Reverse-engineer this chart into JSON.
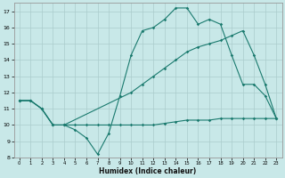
{
  "xlabel": "Humidex (Indice chaleur)",
  "line_color": "#1a7a6e",
  "bg_color": "#c8e8e8",
  "grid_color": "#aacccc",
  "xlim": [
    -0.5,
    23.5
  ],
  "ylim": [
    8,
    17.5
  ],
  "yticks": [
    8,
    9,
    10,
    11,
    12,
    13,
    14,
    15,
    16,
    17
  ],
  "xticks": [
    0,
    1,
    2,
    3,
    4,
    5,
    6,
    7,
    8,
    9,
    10,
    11,
    12,
    13,
    14,
    15,
    16,
    17,
    18,
    19,
    20,
    21,
    22,
    23
  ],
  "line1_x": [
    0,
    1,
    2,
    3,
    4,
    5,
    6,
    7,
    8,
    9,
    10,
    11,
    12,
    13,
    14,
    15,
    16,
    17,
    18,
    19,
    20,
    21,
    22,
    23
  ],
  "line1_y": [
    11.5,
    11.5,
    11.0,
    10.0,
    10.0,
    10.0,
    10.0,
    10.0,
    10.0,
    10.0,
    10.0,
    10.0,
    10.0,
    10.1,
    10.2,
    10.3,
    10.3,
    10.3,
    10.4,
    10.4,
    10.4,
    10.4,
    10.4,
    10.4
  ],
  "line2_x": [
    0,
    1,
    2,
    3,
    4,
    10,
    11,
    12,
    13,
    14,
    15,
    16,
    17,
    18,
    19,
    20,
    21,
    22,
    23
  ],
  "line2_y": [
    11.5,
    11.5,
    11.0,
    10.0,
    10.0,
    12.0,
    12.5,
    13.0,
    13.5,
    14.0,
    14.5,
    14.8,
    15.0,
    15.2,
    15.5,
    15.8,
    14.3,
    12.5,
    10.4
  ],
  "line3_x": [
    0,
    1,
    2,
    3,
    4,
    5,
    6,
    7,
    8,
    9,
    10,
    11,
    12,
    13,
    14,
    15,
    16,
    17,
    18,
    19,
    20,
    21,
    22,
    23
  ],
  "line3_y": [
    11.5,
    11.5,
    11.0,
    10.0,
    10.0,
    9.7,
    9.2,
    8.2,
    9.5,
    11.8,
    14.3,
    15.8,
    16.0,
    16.5,
    17.2,
    17.2,
    16.2,
    16.5,
    16.2,
    14.3,
    12.5,
    12.5,
    11.8,
    10.4
  ]
}
